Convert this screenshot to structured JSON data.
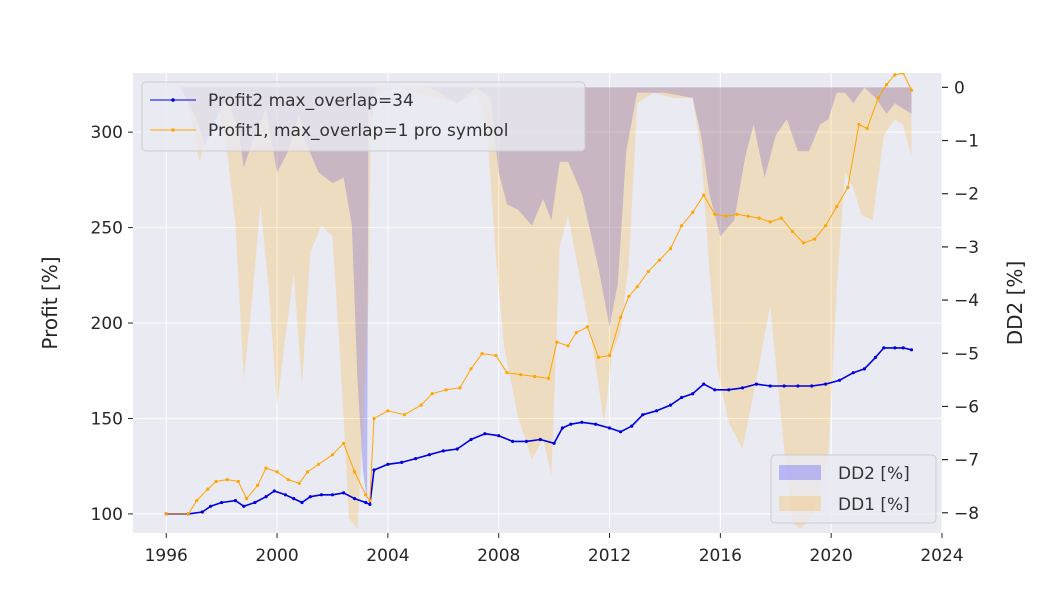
{
  "chart_data": {
    "type": "line",
    "xlabel": "",
    "ylabel": "Profit [%]",
    "y2label": "DD2 [%]",
    "xlim": [
      1994.8,
      2024.0
    ],
    "ylim": [
      90,
      331
    ],
    "y2lim": [
      -8.38,
      0.27
    ],
    "xticks": [
      1996,
      2000,
      2004,
      2008,
      2012,
      2016,
      2020,
      2024
    ],
    "yticks": [
      100,
      150,
      200,
      250,
      300
    ],
    "y2ticks": [
      0,
      -1,
      -2,
      -3,
      -4,
      -5,
      -6,
      -7,
      -8
    ],
    "y2_tick_labels": [
      "0",
      "−1",
      "−2",
      "−3",
      "−4",
      "−5",
      "−6",
      "−7",
      "−8"
    ],
    "grid": true,
    "background": "#eaeaf2",
    "series": [
      {
        "name": "Profit2 max_overlap=34",
        "axis": "left",
        "color": "#0000dd",
        "x": [
          1996.0,
          1996.8,
          1997.3,
          1997.6,
          1998.0,
          1998.5,
          1998.8,
          1999.2,
          1999.6,
          1999.9,
          2000.3,
          2000.6,
          2000.9,
          2001.2,
          2001.6,
          2002.0,
          2002.4,
          2002.8,
          2003.2,
          2003.35,
          2003.5,
          2004.0,
          2004.5,
          2005.0,
          2005.5,
          2006.0,
          2006.5,
          2007.0,
          2007.5,
          2008.0,
          2008.5,
          2009.0,
          2009.5,
          2010.0,
          2010.3,
          2010.6,
          2011.0,
          2011.5,
          2012.0,
          2012.4,
          2012.8,
          2013.2,
          2013.7,
          2014.2,
          2014.6,
          2015.0,
          2015.4,
          2015.8,
          2016.3,
          2016.8,
          2017.3,
          2017.8,
          2018.3,
          2018.8,
          2019.3,
          2019.8,
          2020.3,
          2020.8,
          2021.2,
          2021.6,
          2021.9,
          2022.3,
          2022.6,
          2022.9
        ],
        "y": [
          100,
          100,
          101,
          104,
          106,
          107,
          104,
          106,
          109,
          112,
          110,
          108,
          106,
          109,
          110,
          110,
          111,
          108,
          106,
          105,
          123,
          126,
          127,
          129,
          131,
          133,
          134,
          139,
          142,
          141,
          138,
          138,
          139,
          137,
          145,
          147,
          148,
          147,
          145,
          143,
          146,
          152,
          154,
          157,
          161,
          163,
          168,
          165,
          165,
          166,
          168,
          167,
          167,
          167,
          167,
          168,
          170,
          174,
          176,
          182,
          187,
          187,
          187,
          186
        ]
      },
      {
        "name": "Profit1, max_overlap=1 pro symbol",
        "axis": "left",
        "color": "#ffa500",
        "x": [
          1996.0,
          1996.8,
          1997.1,
          1997.5,
          1997.8,
          1998.2,
          1998.6,
          1998.9,
          1999.3,
          1999.6,
          2000.0,
          2000.4,
          2000.8,
          2001.1,
          2001.5,
          2002.0,
          2002.4,
          2002.8,
          2003.2,
          2003.35,
          2003.5,
          2004.0,
          2004.6,
          2005.2,
          2005.6,
          2006.1,
          2006.6,
          2007.0,
          2007.4,
          2007.9,
          2008.3,
          2008.8,
          2009.3,
          2009.8,
          2010.1,
          2010.5,
          2010.8,
          2011.2,
          2011.6,
          2012.0,
          2012.4,
          2012.7,
          2013.0,
          2013.4,
          2013.8,
          2014.2,
          2014.6,
          2015.0,
          2015.4,
          2015.8,
          2016.2,
          2016.6,
          2017.0,
          2017.4,
          2017.8,
          2018.2,
          2018.6,
          2019.0,
          2019.4,
          2019.8,
          2020.2,
          2020.6,
          2021.0,
          2021.3,
          2021.7,
          2022.0,
          2022.3,
          2022.6,
          2022.9
        ],
        "y": [
          100,
          100,
          107,
          113,
          117,
          118,
          117,
          108,
          115,
          124,
          122,
          118,
          116,
          122,
          126,
          131,
          137,
          122,
          110,
          107,
          150,
          154,
          152,
          157,
          163,
          165,
          166,
          176,
          184,
          183,
          174,
          173,
          172,
          171,
          190,
          188,
          195,
          198,
          182,
          183,
          203,
          214,
          219,
          227,
          233,
          239,
          251,
          258,
          267,
          257,
          256,
          257,
          256,
          255,
          253,
          255,
          248,
          242,
          244,
          251,
          261,
          271,
          304,
          302,
          318,
          325,
          330,
          331,
          322
        ]
      }
    ],
    "areas": [
      {
        "name": "DD2 [%]",
        "axis": "right",
        "color": "#0000ff",
        "opacity": 0.2,
        "x": [
          1996.0,
          1996.5,
          1996.8,
          1997.1,
          1997.4,
          1997.8,
          1998.2,
          1998.6,
          1998.8,
          1999.2,
          1999.6,
          2000.0,
          2000.4,
          2000.8,
          2001.0,
          2001.5,
          2002.0,
          2002.4,
          2002.7,
          2002.9,
          2003.1,
          2003.25,
          2003.3,
          2003.4,
          2003.6,
          2004.5,
          2005.5,
          2006.5,
          2007.2,
          2007.7,
          2008.0,
          2008.3,
          2008.7,
          2009.2,
          2009.6,
          2009.9,
          2010.2,
          2010.5,
          2011.0,
          2011.6,
          2012.0,
          2012.3,
          2012.6,
          2013.0,
          2014.0,
          2015.0,
          2015.3,
          2015.6,
          2016.0,
          2016.5,
          2016.9,
          2017.2,
          2017.6,
          2018.0,
          2018.4,
          2018.8,
          2019.2,
          2019.6,
          2019.9,
          2020.2,
          2020.5,
          2020.8,
          2021.2,
          2021.6,
          2022.0,
          2022.3,
          2022.6,
          2022.9
        ],
        "y": [
          0,
          0,
          -0.3,
          -0.6,
          -1.1,
          -0.6,
          -0.2,
          -0.8,
          -1.5,
          -0.9,
          -0.4,
          -1.6,
          -1.2,
          -0.5,
          -1.0,
          -1.6,
          -1.8,
          -1.7,
          -2.6,
          -5.5,
          -7.2,
          -7.8,
          -0.1,
          -0.6,
          0,
          0,
          0,
          -0.3,
          0,
          -0.2,
          -1.6,
          -2.2,
          -2.3,
          -2.6,
          -2.1,
          -2.5,
          -1.4,
          -1.4,
          -2.0,
          -3.4,
          -4.5,
          -3.7,
          -1.2,
          -0.1,
          -0.1,
          -0.2,
          -0.9,
          -2.0,
          -2.8,
          -2.5,
          -1.3,
          -0.7,
          -1.7,
          -0.9,
          -0.6,
          -1.2,
          -1.2,
          -0.7,
          -0.6,
          -0.1,
          -0.1,
          -0.3,
          0,
          -0.2,
          -0.5,
          -0.3,
          -0.4,
          -0.5
        ]
      },
      {
        "name": "DD1 [%]",
        "axis": "right",
        "color": "#ffa500",
        "opacity": 0.2,
        "x": [
          1996.0,
          1996.6,
          1996.9,
          1997.2,
          1997.5,
          1997.9,
          1998.2,
          1998.5,
          1998.8,
          1999.1,
          1999.4,
          1999.7,
          2000.0,
          2000.3,
          2000.6,
          2000.9,
          2001.2,
          2001.6,
          2002.0,
          2002.3,
          2002.6,
          2002.9,
          2003.1,
          2003.3,
          2003.4,
          2003.7,
          2004.3,
          2005.0,
          2005.8,
          2006.5,
          2007.2,
          2007.6,
          2007.9,
          2008.2,
          2008.7,
          2009.2,
          2009.6,
          2009.9,
          2010.2,
          2010.5,
          2010.9,
          2011.4,
          2011.8,
          2012.1,
          2012.4,
          2012.7,
          2013.0,
          2013.6,
          2014.3,
          2015.0,
          2015.3,
          2015.6,
          2015.9,
          2016.3,
          2016.8,
          2017.3,
          2017.8,
          2018.3,
          2018.6,
          2018.9,
          2019.3,
          2019.6,
          2019.9,
          2020.2,
          2020.5,
          2020.8,
          2021.1,
          2021.5,
          2021.9,
          2022.3,
          2022.6,
          2022.9
        ],
        "y": [
          0,
          0,
          -0.6,
          -1.4,
          -0.8,
          -0.4,
          -1.2,
          -2.6,
          -5.5,
          -4.0,
          -2.2,
          -3.8,
          -6.0,
          -4.7,
          -3.5,
          -5.6,
          -3.1,
          -2.6,
          -2.8,
          -5.3,
          -8.1,
          -8.3,
          -6.4,
          -4.0,
          -0.1,
          -0.1,
          0,
          -0.1,
          -0.2,
          -0.3,
          -0.1,
          -0.9,
          -3.2,
          -4.9,
          -6.2,
          -7.0,
          -6.6,
          -7.3,
          -3.0,
          -2.4,
          -3.5,
          -4.9,
          -6.3,
          -5.0,
          -4.6,
          -3.3,
          -0.3,
          -0.1,
          -0.2,
          -0.2,
          -1.2,
          -3.4,
          -5.3,
          -6.3,
          -6.8,
          -5.5,
          -4.1,
          -6.8,
          -8.2,
          -8.3,
          -8.1,
          -7.6,
          -6.9,
          -3.8,
          -1.6,
          -1.9,
          -2.4,
          -2.5,
          -0.9,
          -0.6,
          -0.7,
          -1.3
        ]
      }
    ],
    "legend_upper": {
      "placement": "top-left",
      "items": [
        "Profit2 max_overlap=34",
        "Profit1, max_overlap=1 pro symbol"
      ]
    },
    "legend_lower": {
      "placement": "bottom-right",
      "items": [
        "DD2 [%]",
        "DD1 [%]"
      ]
    }
  }
}
